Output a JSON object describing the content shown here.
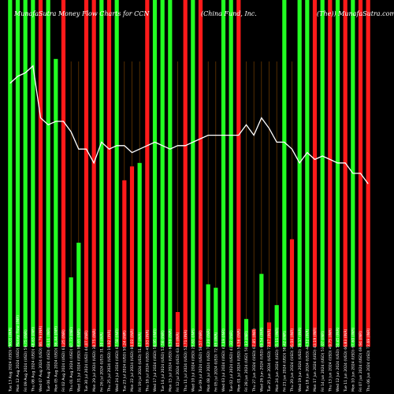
{
  "header": {
    "title": "MunafaSutra  Money Flow  Charts for CCN",
    "company": "(China  Fund,  Inc.",
    "site": "(The)) MunafaSutra.com"
  },
  "colors": {
    "background": "#000000",
    "up": "#22ff22",
    "down": "#ff1a1a",
    "grid": "#8a4a00",
    "line": "#ffffff"
  },
  "chart_data": {
    "type": "bar",
    "title": "MunafaSutra Money Flow Charts for CCN",
    "grid": true,
    "ylim": [
      0,
      100
    ],
    "categories": [
      "Tue 13 Aug",
      "Mon 12 Aug",
      "Fri 09 Aug",
      "Thu 08 Aug",
      "Wed 07 Aug",
      "Tue 06 Aug",
      "Mon 05 Aug",
      "Fri 02 Aug",
      "Thu 01 Aug",
      "Wed 31 Jul",
      "Tue 30 Jul",
      "Mon 29 Jul",
      "Fri 26 Jul",
      "Thu 25 Jul",
      "Wed 24 Jul",
      "Tue 23 Jul",
      "Mon 22 Jul",
      "Fri 19 Jul",
      "Thu 18 Jul",
      "Wed 17 Jul",
      "Tue 16 Jul",
      "Mon 15 Jul",
      "Fri 12 Jul",
      "Thu 11 Jul",
      "Wed 10 Jul",
      "Tue 09 Jul",
      "Mon 08 Jul",
      "Fri 05 Jul",
      "Wed 03 Jul",
      "Tue 02 Jul",
      "Mon 01 Jul",
      "Fri 28 Jun",
      "Thu 27 Jun",
      "Wed 26 Jun",
      "Tue 25 Jun",
      "Mon 24 Jun",
      "Fri 21 Jun",
      "Thu 20 Jun",
      "Wed 19 Jun",
      "Tue 18 Jun",
      "Mon 17 Jun",
      "Fri 14 Jun",
      "Thu 13 Jun",
      "Wed 12 Jun",
      "Tue 11 Jun",
      "Mon 10 Jun",
      "Fri 07 Jun",
      "Thu 06 Jun"
    ],
    "x_labels": [
      "Tue 13 Aug 2024 (USD) FMCG (INR)",
      "Mon 12 Aug 2024 (USD) Money Flow (INR)",
      "Fri 09 Aug 2024 (USD) 59.75 (INR)",
      "Thu 08 Aug 2024 (USD) 48.63 (INR)",
      "Wed 07 Aug 2024 (USD) 86.79 (INR)",
      "Tue 06 Aug 2024 (USD) 43.11 (INR)",
      "Mon 05 Aug 2024 (USD) 36.44 (INR)",
      "Fri 02 Aug 2024 (USD) 61.25 (INR)",
      "Thu 01 Aug 2024 (USD) 87.73 (INR)",
      "Wed 31 Jul 2024 (USD) 98.65 (INR)",
      "Tue 30 Jul 2024 (USD) 44.07 (INR)",
      "Mon 29 Jul 2024 (USD) 38.75 (INR)",
      "Fri 26 Jul 2024 (USD) 31.30 (INR)",
      "Thu 25 Jul 2024 (USD) 19.92 (INR)",
      "Wed 24 Jul 2024 (USD) 67.58 (INR)",
      "Tue 23 Jul 2024 (USD) 50.24 (INR)",
      "Mon 22 Jul 2024 (USD) 60.03 (INR)",
      "Fri 19 Jul 2024 (USD) 51.47 (INR)",
      "Thu 18 Jul 2024 (USD) 49.93 (INR)",
      "Wed 17 Jul 2024 (USD) 58.95 (INR)",
      "Tue 16 Jul 2024 (USD) 52.58 (INR)",
      "Mon 15 Jul 2024 (USD) 66.59 (INR)",
      "Fri 12 Jul 2024 (USD) 63.65 (INR)",
      "Thu 11 Jul 2024 (USD) 52.71 (INR)",
      "Wed 10 Jul 2024 (USD) 25.61 (INR)",
      "Tue 09 Jul 2024 (USD) 58.57 (INR)",
      "Mon 08 Jul 2024 (USD) 74.20 (INR)",
      "Fri 05 Jul 2024 (USD) 72.05 (INR)",
      "Wed 03 Jul 2024 (USD) 47.19 (INR)",
      "Tue 02 Jul 2024 (USD) 41.32 (INR)",
      "Mon 01 Jul 2024 (USD) 54.56 (INR)",
      "Fri 28 Jun 2024 (USD) 50.13 (INR)",
      "Thu 27 Jun 2024 (USD) 67.85 (INR)",
      "Wed 26 Jun 2024 (USD) 69.54 (INR)",
      "Tue 25 Jun 2024 (USD) 72.07 (INR)",
      "Mon 24 Jun 2024 (USD) 55.11 (INR)",
      "Fri 21 Jun 2024 (USD) 58.42 (INR)",
      "Thu 20 Jun 2024 (USD) 36.04 (INR)",
      "Wed 19 Jun 2024 (USD) 39.17 (INR)",
      "Tue 18 Jun 2024 (USD) 44.32 (INR)",
      "Mon 17 Jun 2024 (USD) 43.19 (INR)",
      "Fri 14 Jun 2024 (USD) 53.07 (INR)",
      "Thu 13 Jun 2024 (USD) 49.75 (INR)",
      "Wed 12 Jun 2024 (USD) 50.45 (INR)",
      "Tue 11 Jun 2024 (USD) 66.83 (INR)",
      "Mon 10 Jun 2024 (USD) 67.60 (INR)",
      "Fri 07 Jun 2024 (USD) 69.94 (INR)",
      "Thu 06 Jun 2024 (USD) 72.69 (INR)"
    ],
    "series": [
      {
        "kind": "bar",
        "values": [
          100,
          100,
          100,
          100,
          100,
          100,
          83,
          100,
          20,
          30,
          100,
          100,
          100,
          100,
          100,
          48,
          52,
          53,
          100,
          100,
          100,
          100,
          10,
          100,
          100,
          100,
          18,
          17,
          100,
          100,
          100,
          8,
          5,
          21,
          7,
          12,
          100,
          31,
          100,
          100,
          100,
          100,
          100,
          100,
          100,
          100,
          100,
          100
        ],
        "colors": [
          "green",
          "green",
          "green",
          "green",
          "red",
          "green",
          "green",
          "red",
          "green",
          "green",
          "red",
          "red",
          "green",
          "red",
          "green",
          "red",
          "red",
          "green",
          "red",
          "green",
          "green",
          "green",
          "red",
          "red",
          "green",
          "red",
          "green",
          "green",
          "green",
          "green",
          "red",
          "green",
          "red",
          "green",
          "red",
          "green",
          "green",
          "red",
          "green",
          "green",
          "red",
          "green",
          "red",
          "green",
          "red",
          "green",
          "red",
          "red"
        ]
      },
      {
        "kind": "line",
        "values": [
          76,
          78,
          79,
          81,
          66,
          64,
          65,
          65,
          62,
          57,
          57,
          53,
          59,
          57,
          58,
          58,
          56,
          57,
          58,
          59,
          58,
          57,
          58,
          58,
          59,
          60,
          61,
          61,
          61,
          61,
          61,
          64,
          61,
          66,
          63,
          59,
          59,
          57,
          53,
          56,
          54,
          55,
          54,
          53,
          53,
          50,
          50,
          47
        ]
      }
    ]
  }
}
